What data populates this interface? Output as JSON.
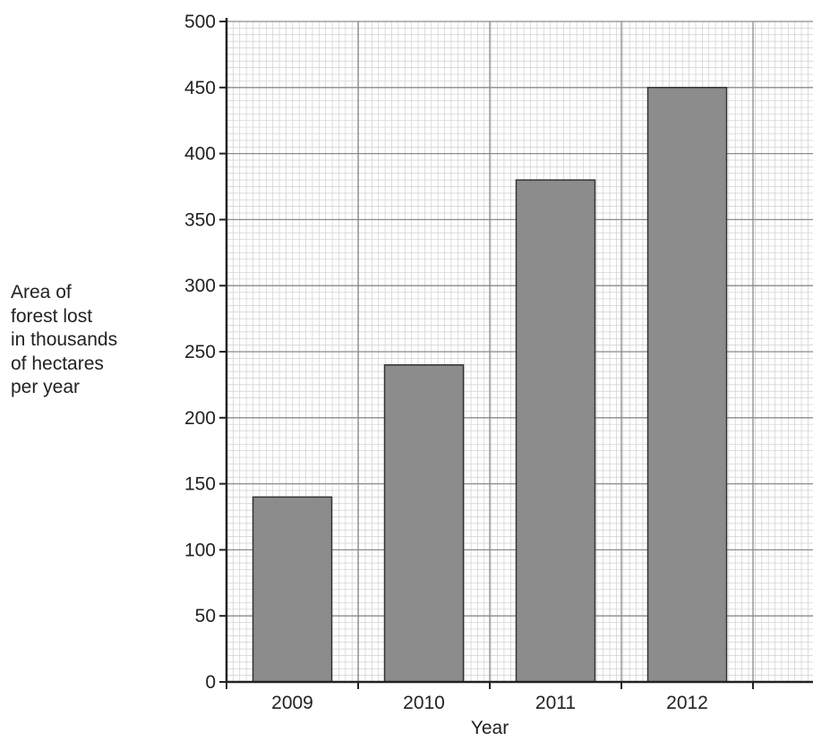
{
  "chart_data": {
    "type": "bar",
    "title": "",
    "xlabel": "Year",
    "ylabel_lines": [
      "Area of",
      "forest lost",
      "in thousands",
      "of hectares",
      "per year"
    ],
    "categories": [
      "2009",
      "2010",
      "2011",
      "2012"
    ],
    "values": [
      140,
      240,
      380,
      450
    ],
    "ylim": [
      0,
      500
    ],
    "yticks": [
      0,
      50,
      100,
      150,
      200,
      250,
      300,
      350,
      400,
      450,
      500
    ],
    "grid": true,
    "bar_color": "#8c8c8c"
  }
}
